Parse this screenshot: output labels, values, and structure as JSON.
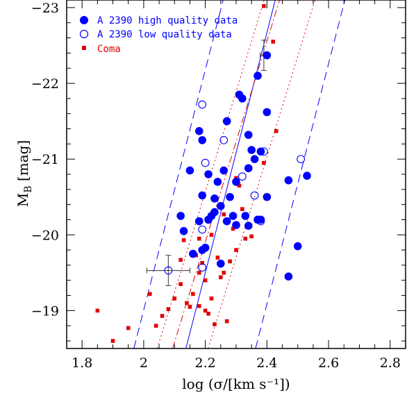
{
  "chart_data": {
    "type": "scatter",
    "xlabel": "log (σ/[km s⁻¹])",
    "ylabel_main": "M",
    "ylabel_sub": "B",
    "ylabel_unit": "[mag]",
    "xlim": [
      1.75,
      2.85
    ],
    "ylim": [
      -18.5,
      -23.1
    ],
    "y_inverted": true,
    "grid": false,
    "legend_position": "top-left",
    "x_ticks": [
      {
        "value": 1.8,
        "label": "1.8"
      },
      {
        "value": 2.0,
        "label": "2"
      },
      {
        "value": 2.2,
        "label": "2.2"
      },
      {
        "value": 2.4,
        "label": "2.4"
      },
      {
        "value": 2.6,
        "label": "2.6"
      },
      {
        "value": 2.8,
        "label": "2.8"
      }
    ],
    "y_ticks": [
      {
        "value": -19,
        "label": "−19"
      },
      {
        "value": -20,
        "label": "−20"
      },
      {
        "value": -21,
        "label": "−21"
      },
      {
        "value": -22,
        "label": "−22"
      },
      {
        "value": -23,
        "label": "−23"
      }
    ],
    "colors": {
      "blue": "#0000ff",
      "red": "#e00000",
      "error_bar": "#555555"
    },
    "series": [
      {
        "name": "A 2390 high quality data",
        "marker": "filled-circle",
        "color": "#0000ff",
        "points": [
          [
            2.16,
            -19.75
          ],
          [
            2.19,
            -19.8
          ],
          [
            2.2,
            -19.83
          ],
          [
            2.13,
            -20.05
          ],
          [
            2.18,
            -20.18
          ],
          [
            2.21,
            -20.2
          ],
          [
            2.22,
            -20.25
          ],
          [
            2.23,
            -20.3
          ],
          [
            2.25,
            -20.38
          ],
          [
            2.12,
            -20.25
          ],
          [
            2.19,
            -20.52
          ],
          [
            2.23,
            -20.48
          ],
          [
            2.24,
            -20.7
          ],
          [
            2.21,
            -20.8
          ],
          [
            2.15,
            -20.85
          ],
          [
            2.26,
            -20.85
          ],
          [
            2.28,
            -20.5
          ],
          [
            2.3,
            -20.7
          ],
          [
            2.27,
            -20.18
          ],
          [
            2.29,
            -20.25
          ],
          [
            2.3,
            -20.13
          ],
          [
            2.33,
            -20.25
          ],
          [
            2.34,
            -20.12
          ],
          [
            2.37,
            -20.2
          ],
          [
            2.38,
            -20.2
          ],
          [
            2.34,
            -20.88
          ],
          [
            2.36,
            -21.0
          ],
          [
            2.35,
            -21.12
          ],
          [
            2.38,
            -21.1
          ],
          [
            2.34,
            -21.32
          ],
          [
            2.32,
            -21.8
          ],
          [
            2.31,
            -21.85
          ],
          [
            2.27,
            -21.5
          ],
          [
            2.18,
            -21.37
          ],
          [
            2.19,
            -21.25
          ],
          [
            2.37,
            -22.1
          ],
          [
            2.4,
            -21.62
          ],
          [
            2.4,
            -20.5
          ],
          [
            2.25,
            -19.62
          ],
          [
            2.47,
            -20.72
          ],
          [
            2.53,
            -20.78
          ],
          [
            2.5,
            -19.85
          ],
          [
            2.47,
            -19.45
          ],
          [
            2.4,
            -22.37
          ]
        ]
      },
      {
        "name": "A 2390 low quality data",
        "marker": "open-circle",
        "color": "#0000ff",
        "points": [
          [
            2.19,
            -21.72
          ],
          [
            2.26,
            -21.25
          ],
          [
            2.2,
            -20.95
          ],
          [
            2.32,
            -20.77
          ],
          [
            2.39,
            -21.1
          ],
          [
            2.36,
            -20.52
          ],
          [
            2.51,
            -21.0
          ],
          [
            2.38,
            -20.18
          ],
          [
            2.19,
            -20.07
          ],
          [
            2.19,
            -19.57
          ],
          [
            2.08,
            -19.53
          ]
        ]
      },
      {
        "name": "Coma",
        "marker": "filled-square",
        "color": "#e00000",
        "points": [
          [
            1.85,
            -19.0
          ],
          [
            1.9,
            -18.6
          ],
          [
            1.95,
            -18.77
          ],
          [
            2.04,
            -18.8
          ],
          [
            2.06,
            -18.93
          ],
          [
            2.08,
            -19.02
          ],
          [
            2.1,
            -19.16
          ],
          [
            2.12,
            -19.35
          ],
          [
            2.12,
            -19.67
          ],
          [
            2.14,
            -19.1
          ],
          [
            2.15,
            -19.05
          ],
          [
            2.16,
            -19.22
          ],
          [
            2.18,
            -19.5
          ],
          [
            2.18,
            -19.06
          ],
          [
            2.2,
            -19.0
          ],
          [
            2.2,
            -19.4
          ],
          [
            2.21,
            -18.96
          ],
          [
            2.22,
            -19.16
          ],
          [
            2.23,
            -18.82
          ],
          [
            2.24,
            -19.7
          ],
          [
            2.25,
            -19.44
          ],
          [
            2.26,
            -19.5
          ],
          [
            2.27,
            -18.86
          ],
          [
            2.28,
            -19.65
          ],
          [
            2.3,
            -19.8
          ],
          [
            2.33,
            -19.95
          ],
          [
            2.35,
            -19.98
          ],
          [
            2.02,
            -19.22
          ],
          [
            2.18,
            -19.95
          ],
          [
            2.22,
            -20.0
          ],
          [
            2.31,
            -20.65
          ],
          [
            2.3,
            -20.75
          ],
          [
            2.39,
            -20.95
          ],
          [
            2.43,
            -21.37
          ],
          [
            2.39,
            -23.02
          ],
          [
            2.42,
            -22.55
          ],
          [
            2.17,
            -19.73
          ],
          [
            2.19,
            -19.63
          ],
          [
            2.13,
            -19.93
          ],
          [
            2.26,
            -20.27
          ],
          [
            2.29,
            -20.08
          ],
          [
            2.32,
            -20.34
          ]
        ]
      }
    ],
    "error_bars": [
      {
        "x": 2.08,
        "y": -19.53,
        "xerr": 0.07,
        "yerr": 0.2
      },
      {
        "x": 2.39,
        "y": -22.37,
        "xerr": 0.012,
        "yerr": 0.2
      }
    ],
    "fit_lines": [
      {
        "style": "solid",
        "color": "#0000ff",
        "points": [
          [
            2.137,
            -18.5
          ],
          [
            2.427,
            -23.1
          ]
        ]
      },
      {
        "style": "dashed",
        "color": "#0000ff",
        "points": [
          [
            1.968,
            -18.5
          ],
          [
            2.258,
            -23.1
          ]
        ]
      },
      {
        "style": "dashed",
        "color": "#0000ff",
        "points": [
          [
            2.363,
            -18.5
          ],
          [
            2.653,
            -23.1
          ]
        ]
      },
      {
        "style": "dashdot",
        "color": "#e00000",
        "points": [
          [
            2.094,
            -18.5
          ],
          [
            2.441,
            -23.1
          ]
        ]
      },
      {
        "style": "dotted",
        "color": "#e00000",
        "points": [
          [
            2.044,
            -18.5
          ],
          [
            2.391,
            -23.1
          ]
        ]
      },
      {
        "style": "dotted",
        "color": "#e00000",
        "points": [
          [
            2.209,
            -18.5
          ],
          [
            2.556,
            -23.1
          ]
        ]
      }
    ]
  }
}
